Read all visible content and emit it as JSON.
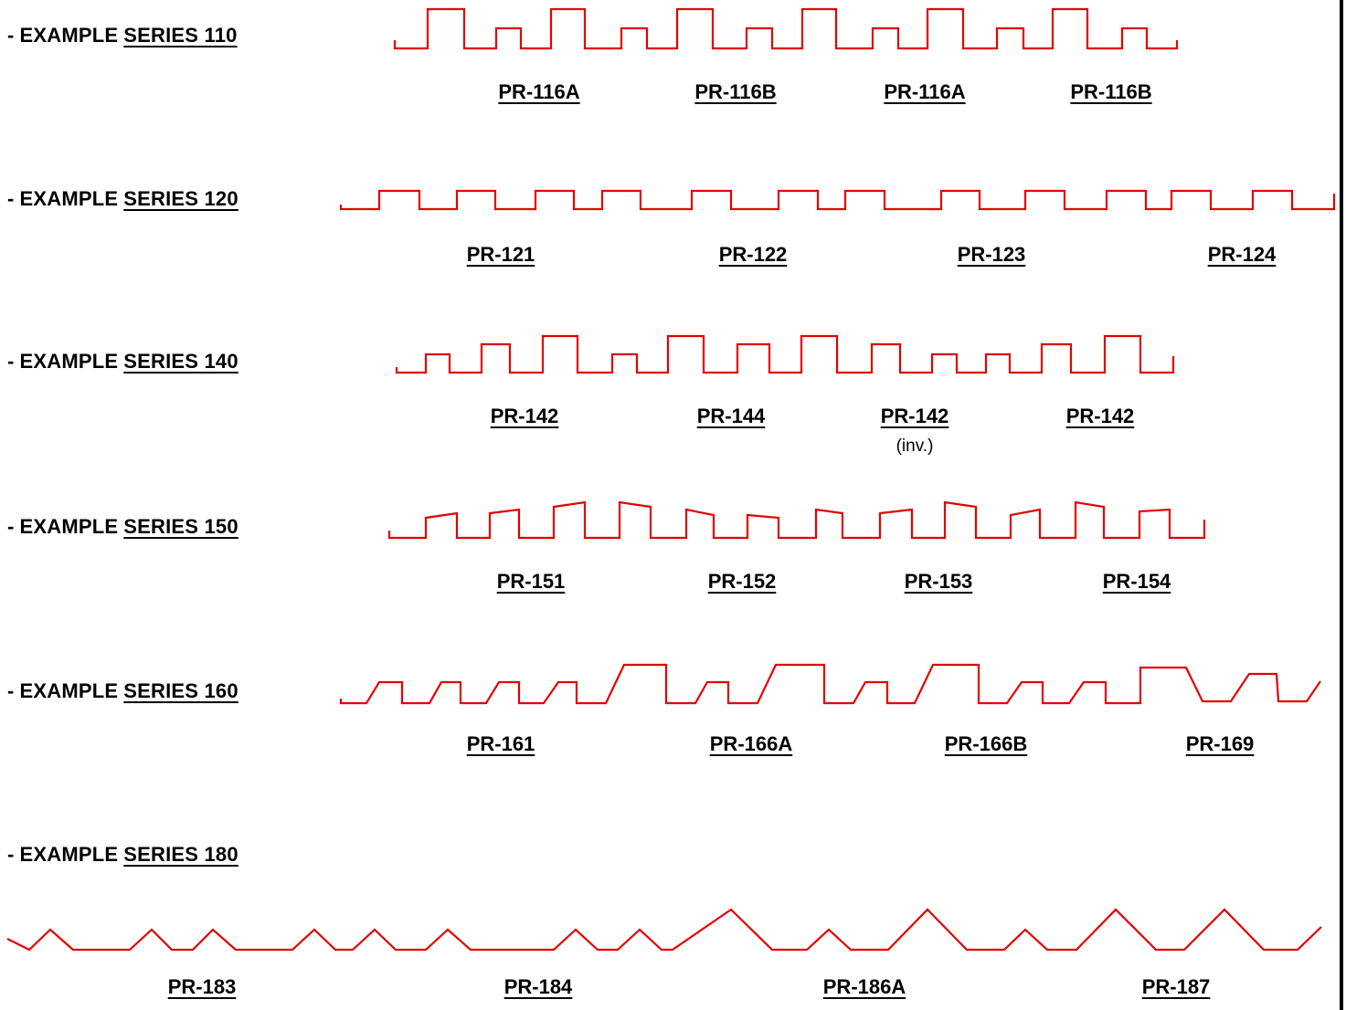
{
  "colors": {
    "profile_line": "#e30000",
    "text": "#000000"
  },
  "rows": [
    {
      "dash": "-",
      "prefix": "EXAMPLE",
      "series": "SERIES 110",
      "profiles": [
        {
          "label": "PR-116A"
        },
        {
          "label": "PR-116B"
        },
        {
          "label": "PR-116A"
        },
        {
          "label": "PR-116B"
        }
      ]
    },
    {
      "dash": "-",
      "prefix": "EXAMPLE",
      "series": "SERIES 120",
      "profiles": [
        {
          "label": "PR-121"
        },
        {
          "label": "PR-122"
        },
        {
          "label": "PR-123"
        },
        {
          "label": "PR-124"
        }
      ]
    },
    {
      "dash": "-",
      "prefix": "EXAMPLE",
      "series": "SERIES 140",
      "profiles": [
        {
          "label": "PR-142"
        },
        {
          "label": "PR-144"
        },
        {
          "label": "PR-142",
          "note": "(inv.)"
        },
        {
          "label": "PR-142"
        }
      ]
    },
    {
      "dash": "-",
      "prefix": "EXAMPLE",
      "series": "SERIES 150",
      "profiles": [
        {
          "label": "PR-151"
        },
        {
          "label": "PR-152"
        },
        {
          "label": "PR-153"
        },
        {
          "label": "PR-154"
        }
      ]
    },
    {
      "dash": "-",
      "prefix": "EXAMPLE",
      "series": "SERIES 160",
      "profiles": [
        {
          "label": "PR-161"
        },
        {
          "label": "PR-166A"
        },
        {
          "label": "PR-166B"
        },
        {
          "label": "PR-169"
        }
      ]
    },
    {
      "dash": "-",
      "prefix": "EXAMPLE",
      "series": "SERIES 180",
      "profiles": [
        {
          "label": "PR-183"
        },
        {
          "label": "PR-184"
        },
        {
          "label": "PR-186A"
        },
        {
          "label": "PR-187"
        }
      ]
    }
  ]
}
